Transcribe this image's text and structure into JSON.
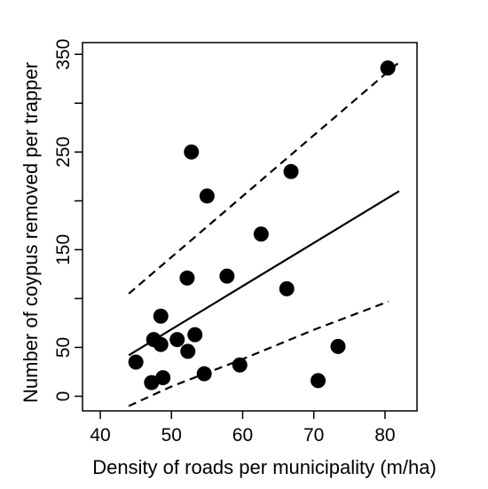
{
  "chart_data": {
    "type": "scatter",
    "title": "",
    "xlabel": "Density of roads per municipality (m/ha)",
    "ylabel": "Number of coypus removed per trapper",
    "xlim": [
      37.5,
      84.5
    ],
    "ylim": [
      -15,
      362
    ],
    "x_ticks": [
      40,
      50,
      60,
      70,
      80
    ],
    "y_ticks": [
      0,
      50,
      150,
      250,
      350
    ],
    "y_minor_ticks": [
      100,
      200,
      300
    ],
    "grid": false,
    "legend": "none",
    "colors": {
      "points": "#000000",
      "lines": "#000000"
    },
    "points": [
      {
        "x": 45.0,
        "y": 35
      },
      {
        "x": 47.2,
        "y": 14
      },
      {
        "x": 47.5,
        "y": 58
      },
      {
        "x": 48.5,
        "y": 82
      },
      {
        "x": 48.5,
        "y": 53
      },
      {
        "x": 48.8,
        "y": 19
      },
      {
        "x": 50.8,
        "y": 58
      },
      {
        "x": 52.2,
        "y": 121
      },
      {
        "x": 52.3,
        "y": 46
      },
      {
        "x": 52.8,
        "y": 250
      },
      {
        "x": 53.3,
        "y": 63
      },
      {
        "x": 54.6,
        "y": 23
      },
      {
        "x": 55.0,
        "y": 205
      },
      {
        "x": 57.8,
        "y": 123
      },
      {
        "x": 59.6,
        "y": 32
      },
      {
        "x": 62.6,
        "y": 166
      },
      {
        "x": 66.2,
        "y": 110
      },
      {
        "x": 66.8,
        "y": 230
      },
      {
        "x": 70.6,
        "y": 16
      },
      {
        "x": 73.4,
        "y": 51
      },
      {
        "x": 80.4,
        "y": 336
      }
    ],
    "fit_line": {
      "style": "solid",
      "x": [
        44.0,
        82.0
      ],
      "y": [
        42,
        210
      ]
    },
    "upper_bound": {
      "style": "dashed",
      "x": [
        44.0,
        82.0
      ],
      "y": [
        105,
        342
      ]
    },
    "lower_bound": {
      "style": "dashed",
      "x": [
        44.0,
        50.0,
        60.0,
        70.0,
        80.5
      ],
      "y": [
        -10,
        10,
        38,
        68,
        97
      ]
    }
  }
}
